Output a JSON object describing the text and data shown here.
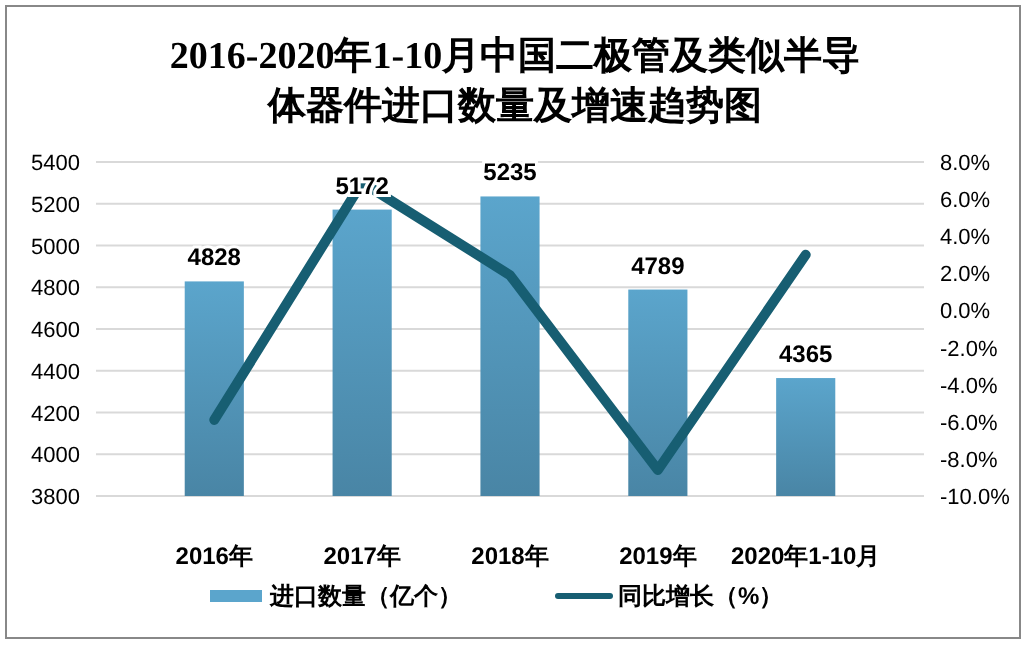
{
  "chart_data": {
    "type": "bar",
    "title": "2016-2020年1-10月中国二极管及类似半导体器件进口数量及增速趋势图",
    "categories": [
      "2016年",
      "2017年",
      "2018年",
      "2019年",
      "2020年1-10月"
    ],
    "series": [
      {
        "name": "进口数量（亿个）",
        "color": "#5ba5cc",
        "values": [
          4828,
          5172,
          5235,
          4789,
          4365
        ],
        "value_labels": [
          "4828",
          "5172",
          "5235",
          "4789",
          "4365"
        ]
      },
      {
        "name": "同比增长（%）",
        "type": "line",
        "axis": "y2",
        "color": "#175e72",
        "values": [
          -5.9,
          6.9,
          1.9,
          -8.6,
          3.0
        ]
      }
    ],
    "ylim": [
      3800,
      5400
    ],
    "yticks": [
      3800,
      4000,
      4200,
      4400,
      4600,
      4800,
      5000,
      5200,
      5400
    ],
    "y2lim": [
      -10,
      8
    ],
    "y2ticks": [
      {
        "value": -10,
        "label": "-10.0%"
      },
      {
        "value": -8,
        "label": "-8.0%"
      },
      {
        "value": -6,
        "label": "-6.0%"
      },
      {
        "value": -4,
        "label": "-4.0%"
      },
      {
        "value": -2,
        "label": "-2.0%"
      },
      {
        "value": 0,
        "label": "0.0%"
      },
      {
        "value": 2,
        "label": "2.0%"
      },
      {
        "value": 4,
        "label": "4.0%"
      },
      {
        "value": 6,
        "label": "6.0%"
      },
      {
        "value": 8,
        "label": "8.0%"
      }
    ],
    "grid": "y",
    "legend": "bottom",
    "marker": "none",
    "line_style": "solid"
  }
}
